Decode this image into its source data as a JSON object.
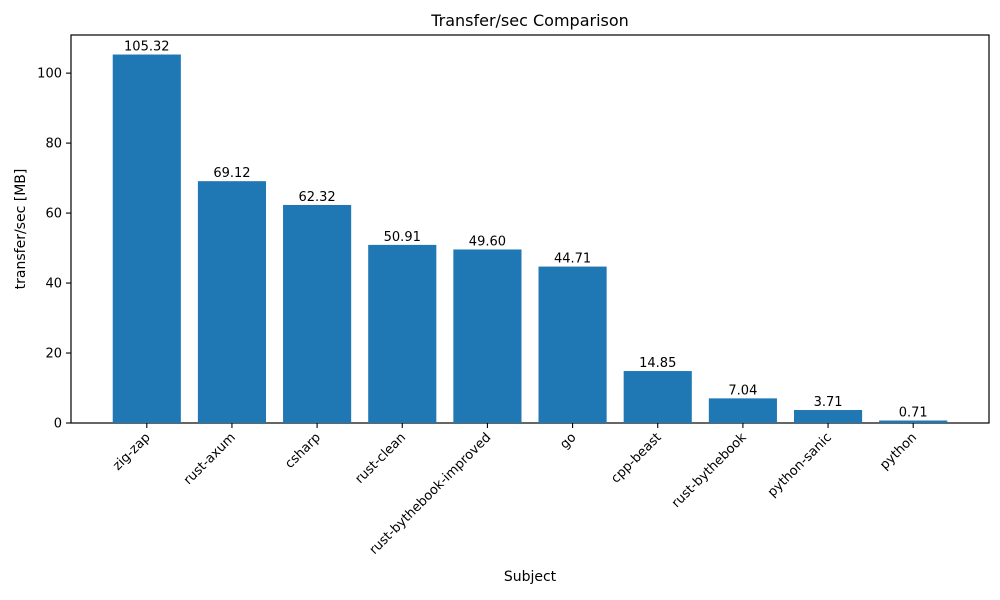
{
  "chart_data": {
    "type": "bar",
    "title": "Transfer/sec Comparison",
    "xlabel": "Subject",
    "ylabel": "transfer/sec [MB]",
    "categories": [
      "zig-zap",
      "rust-axum",
      "csharp",
      "rust-clean",
      "rust-bythebook-improved",
      "go",
      "cpp-beast",
      "rust-bythebook",
      "python-sanic",
      "python"
    ],
    "values": [
      105.32,
      69.12,
      62.32,
      50.91,
      49.6,
      44.71,
      14.85,
      7.04,
      3.71,
      0.71
    ],
    "value_labels": [
      "105.32",
      "69.12",
      "62.32",
      "50.91",
      "49.60",
      "44.71",
      "14.85",
      "7.04",
      "3.71",
      "0.71"
    ],
    "yticks": [
      0,
      20,
      40,
      60,
      80,
      100
    ],
    "ylim": [
      0,
      110.9
    ],
    "bar_color": "#1f77b4",
    "bar_width_fraction": 0.8,
    "x_tick_rotation_deg": 45,
    "grid": false,
    "legend": "none",
    "background": "#ffffff"
  }
}
